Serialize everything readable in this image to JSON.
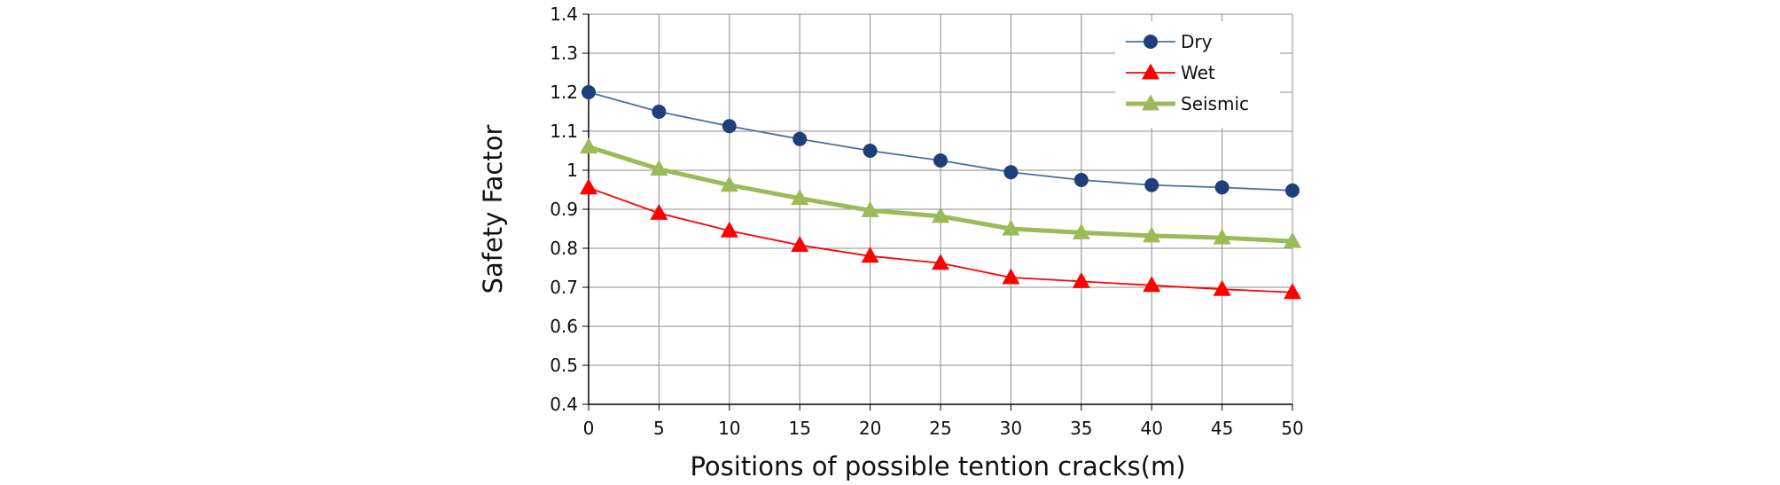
{
  "chart_data": {
    "type": "line",
    "title": "",
    "xlabel": "Positions of possible tention cracks(m)",
    "ylabel": "Safety Factor",
    "x": [
      0,
      5,
      10,
      15,
      20,
      25,
      30,
      35,
      40,
      45,
      50
    ],
    "x_tick_labels": [
      "0",
      "5",
      "10",
      "15",
      "20",
      "25",
      "30",
      "35",
      "40",
      "45",
      "50"
    ],
    "xlim": [
      0,
      50
    ],
    "ylim": [
      0.4,
      1.4
    ],
    "y_ticks": [
      0.4,
      0.5,
      0.6,
      0.7,
      0.8,
      0.9,
      1.0,
      1.1,
      1.2,
      1.3,
      1.4
    ],
    "y_tick_labels": [
      "0.4",
      "0.5",
      "0.6",
      "0.7",
      "0.8",
      "0.9",
      "1",
      "1.1",
      "1.2",
      "1.3",
      "1.4"
    ],
    "grid": true,
    "legend_position": "top-right",
    "series": [
      {
        "name": "Dry",
        "color": "#4a6fa5",
        "marker_color": "#1f3f7a",
        "marker": "circle",
        "line": "thin",
        "values": [
          1.2,
          1.15,
          1.113,
          1.08,
          1.05,
          1.025,
          0.995,
          0.975,
          0.962,
          0.956,
          0.948
        ]
      },
      {
        "name": "Wet",
        "color": "#ff0000",
        "marker_color": "#ff0000",
        "marker": "triangle",
        "line": "thin",
        "values": [
          0.955,
          0.89,
          0.845,
          0.808,
          0.78,
          0.762,
          0.725,
          0.715,
          0.705,
          0.695,
          0.687
        ]
      },
      {
        "name": "Seismic",
        "color": "#9bbb59",
        "marker_color": "#9bbb59",
        "marker": "triangle",
        "line": "thick",
        "values": [
          1.06,
          1.003,
          0.962,
          0.928,
          0.897,
          0.882,
          0.85,
          0.84,
          0.832,
          0.827,
          0.818
        ]
      }
    ]
  }
}
